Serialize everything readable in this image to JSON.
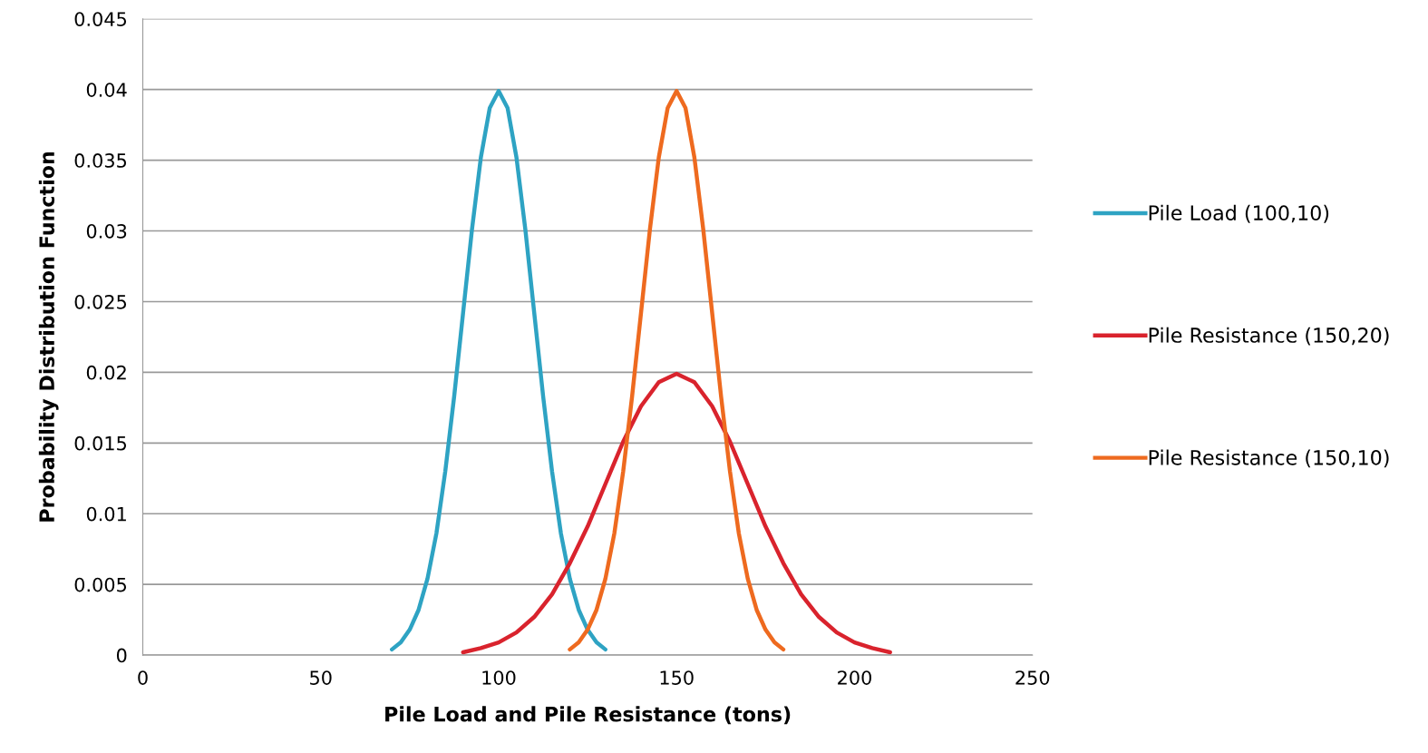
{
  "chart_data": {
    "type": "line",
    "xlabel": "Pile Load and Pile Resistance (tons)",
    "ylabel": "Probability Distribution Function",
    "xlim": [
      0,
      250
    ],
    "xticks": [
      0,
      50,
      100,
      150,
      200,
      250
    ],
    "ylim": [
      0,
      0.045
    ],
    "yticks": [
      0,
      0.005,
      0.01,
      0.015,
      0.02,
      0.025,
      0.03,
      0.035,
      0.04,
      0.045
    ],
    "grid": "y",
    "legend": "right",
    "marker": "none",
    "line_style": "solid",
    "series": [
      {
        "name": "Pile Load (100,10)",
        "color": "#2ea3c3",
        "x": [
          70,
          72.5,
          75,
          77.5,
          80,
          82.5,
          85,
          87.5,
          90,
          92.5,
          95,
          97.5,
          100,
          102.5,
          105,
          107.5,
          110,
          112.5,
          115,
          117.5,
          120,
          122.5,
          125,
          127.5,
          130
        ],
        "values": [
          0.0004,
          0.0009,
          0.0018,
          0.0032,
          0.0054,
          0.0086,
          0.013,
          0.0183,
          0.0242,
          0.0301,
          0.0352,
          0.0387,
          0.0399,
          0.0387,
          0.0352,
          0.0301,
          0.0242,
          0.0183,
          0.013,
          0.0086,
          0.0054,
          0.0032,
          0.0018,
          0.0009,
          0.0004
        ]
      },
      {
        "name": "Pile Resistance (150,20)",
        "color": "#d9232d",
        "x": [
          90,
          95,
          100,
          105,
          110,
          115,
          120,
          125,
          130,
          135,
          140,
          145,
          150,
          155,
          160,
          165,
          170,
          175,
          180,
          185,
          190,
          195,
          200,
          205,
          210
        ],
        "values": [
          0.0002,
          0.0005,
          0.0009,
          0.0016,
          0.0027,
          0.0043,
          0.0065,
          0.0091,
          0.0121,
          0.0151,
          0.0176,
          0.0193,
          0.0199,
          0.0193,
          0.0176,
          0.0151,
          0.0121,
          0.0091,
          0.0065,
          0.0043,
          0.0027,
          0.0016,
          0.0009,
          0.0005,
          0.0002
        ]
      },
      {
        "name": "Pile Resistance (150,10)",
        "color": "#ee6a1f",
        "x": [
          120,
          122.5,
          125,
          127.5,
          130,
          132.5,
          135,
          137.5,
          140,
          142.5,
          145,
          147.5,
          150,
          152.5,
          155,
          157.5,
          160,
          162.5,
          165,
          167.5,
          170,
          172.5,
          175,
          177.5,
          180
        ],
        "values": [
          0.0004,
          0.0009,
          0.0018,
          0.0032,
          0.0054,
          0.0086,
          0.013,
          0.0183,
          0.0242,
          0.0301,
          0.0352,
          0.0387,
          0.0399,
          0.0387,
          0.0352,
          0.0301,
          0.0242,
          0.0183,
          0.013,
          0.0086,
          0.0054,
          0.0032,
          0.0018,
          0.0009,
          0.0004
        ]
      }
    ]
  }
}
